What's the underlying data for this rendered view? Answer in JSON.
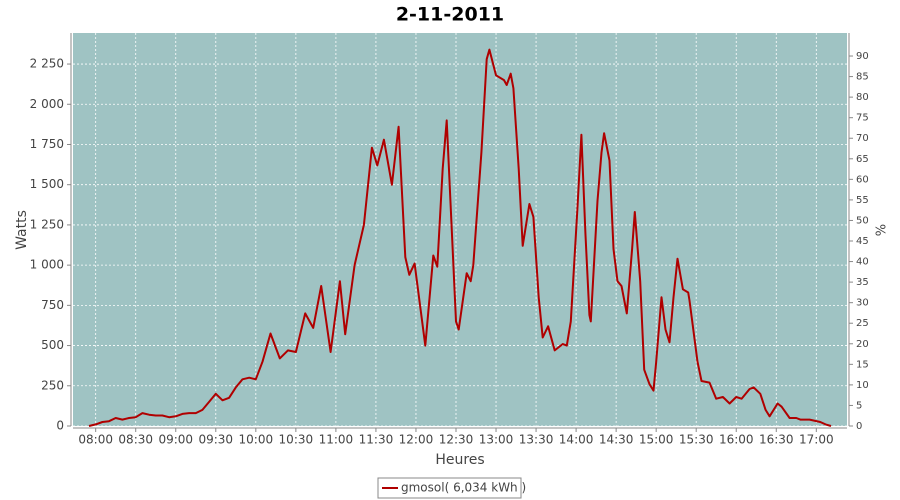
{
  "chart_data": {
    "type": "line",
    "title": "2-11-2011",
    "x_label": "Heures",
    "y_label": "Watts",
    "y2_label": "%",
    "x": [
      "07:55",
      "08:00",
      "08:05",
      "08:10",
      "08:15",
      "08:20",
      "08:25",
      "08:30",
      "08:35",
      "08:40",
      "08:45",
      "08:50",
      "08:55",
      "09:00",
      "09:05",
      "09:10",
      "09:15",
      "09:20",
      "09:25",
      "09:30",
      "09:35",
      "09:40",
      "09:45",
      "09:50",
      "09:55",
      "10:00",
      "10:05",
      "10:11",
      "10:18",
      "10:24",
      "10:30",
      "10:37",
      "10:43",
      "10:49",
      "10:56",
      "11:03",
      "11:07",
      "11:14",
      "11:21",
      "11:27",
      "11:31",
      "11:36",
      "11:42",
      "11:47",
      "11:52",
      "11:55",
      "11:59",
      "12:07",
      "12:13",
      "12:16",
      "12:20",
      "12:23",
      "12:30",
      "12:32",
      "12:38",
      "12:41",
      "12:43",
      "12:49",
      "12:53",
      "12:55",
      "13:00",
      "13:06",
      "13:08",
      "13:11",
      "13:13",
      "13:17",
      "13:20",
      "13:25",
      "13:28",
      "13:32",
      "13:35",
      "13:39",
      "13:44",
      "13:50",
      "13:53",
      "13:56",
      "14:01",
      "14:04",
      "14:07",
      "14:10",
      "14:11",
      "14:16",
      "14:19",
      "14:21",
      "14:25",
      "14:28",
      "14:31",
      "14:34",
      "14:38",
      "14:42",
      "14:44",
      "14:48",
      "14:51",
      "14:55",
      "14:58",
      "15:00",
      "15:04",
      "15:07",
      "15:10",
      "15:13",
      "15:16",
      "15:20",
      "15:24",
      "15:25",
      "15:31",
      "15:34",
      "15:40",
      "15:45",
      "15:50",
      "15:55",
      "16:00",
      "16:04",
      "16:10",
      "16:13",
      "16:18",
      "16:22",
      "16:25",
      "16:31",
      "16:34",
      "16:40",
      "16:45",
      "16:48",
      "16:55",
      "17:03",
      "17:07",
      "17:11"
    ],
    "series": [
      {
        "name": "gmosol( 6,034 kWh )",
        "color": "#b00000",
        "values": [
          0,
          10,
          25,
          30,
          50,
          40,
          50,
          55,
          80,
          70,
          65,
          65,
          55,
          60,
          75,
          80,
          80,
          100,
          150,
          200,
          160,
          175,
          240,
          290,
          300,
          290,
          400,
          575,
          420,
          470,
          460,
          700,
          610,
          870,
          460,
          900,
          570,
          1000,
          1250,
          1730,
          1620,
          1780,
          1500,
          1860,
          1050,
          940,
          1010,
          500,
          1060,
          990,
          1600,
          1900,
          650,
          600,
          950,
          900,
          1000,
          1700,
          2280,
          2340,
          2180,
          2150,
          2120,
          2190,
          2100,
          1600,
          1120,
          1380,
          1300,
          800,
          550,
          620,
          470,
          510,
          500,
          650,
          1350,
          1810,
          1200,
          690,
          650,
          1400,
          1700,
          1820,
          1650,
          1100,
          900,
          870,
          700,
          1100,
          1330,
          900,
          350,
          260,
          220,
          400,
          800,
          600,
          520,
          800,
          1040,
          850,
          830,
          780,
          400,
          280,
          270,
          170,
          180,
          140,
          180,
          170,
          230,
          240,
          200,
          100,
          60,
          140,
          120,
          50,
          50,
          40,
          40,
          25,
          10,
          0
        ]
      }
    ],
    "xlim": [
      "07:43",
      "17:23"
    ],
    "xticks": [
      "08:00",
      "08:30",
      "09:00",
      "09:30",
      "10:00",
      "10:30",
      "11:00",
      "11:30",
      "12:00",
      "12:30",
      "13:00",
      "13:30",
      "14:00",
      "14:30",
      "15:00",
      "15:30",
      "16:00",
      "16:30",
      "17:00"
    ],
    "ylim": [
      0,
      2443
    ],
    "yticks": [
      0,
      250,
      500,
      750,
      {
        "value": 1000,
        "label": "1 000"
      },
      {
        "value": 1250,
        "label": "1 250"
      },
      {
        "value": 1500,
        "label": "1 500"
      },
      {
        "value": 1750,
        "label": "1 750"
      },
      {
        "value": 2000,
        "label": "2 000"
      },
      {
        "value": 2250,
        "label": "2 250"
      }
    ],
    "y2lim": [
      0,
      95.6
    ],
    "y2ticks": [
      0,
      5,
      10,
      15,
      20,
      25,
      30,
      35,
      40,
      45,
      50,
      55,
      60,
      65,
      70,
      75,
      80,
      85,
      90
    ],
    "grid": true,
    "plot_background": "#9fc3c3",
    "legend": "bottom"
  }
}
